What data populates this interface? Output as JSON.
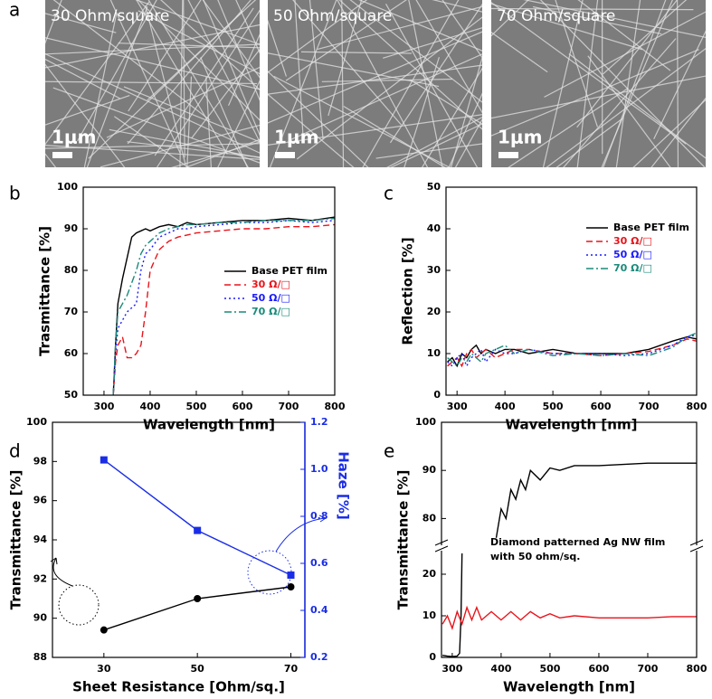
{
  "chart_data": [
    {
      "type": "micrograph",
      "panel": "a",
      "images": [
        {
          "label": "30 Ohm/square",
          "scale_bar": "1μm"
        },
        {
          "label": "50 Ohm/square",
          "scale_bar": "1μm"
        },
        {
          "label": "70 Ohm/square",
          "scale_bar": "1μm"
        }
      ]
    },
    {
      "type": "line",
      "panel": "b",
      "xlabel": "Wavelength [nm]",
      "ylabel": "Trasmittance [%]",
      "xlim": [
        255,
        800
      ],
      "xticks": [
        300,
        400,
        500,
        600,
        700,
        800
      ],
      "ylim": [
        50,
        100
      ],
      "yticks": [
        50,
        60,
        70,
        80,
        90,
        100
      ],
      "legend": "center-right",
      "x": [
        320,
        325,
        330,
        340,
        350,
        360,
        370,
        380,
        390,
        400,
        420,
        440,
        460,
        480,
        500,
        550,
        600,
        650,
        700,
        750,
        800
      ],
      "series": [
        {
          "name": "Base PET film",
          "color": "#000000",
          "linestyle": "solid",
          "values": [
            50,
            62,
            72,
            78,
            83,
            88,
            89,
            89.5,
            90,
            89.5,
            90.5,
            91,
            90.5,
            91.5,
            91,
            91.5,
            92,
            92,
            92.5,
            92,
            92.8
          ]
        },
        {
          "name": "30  Ω/□",
          "color": "#e8141b",
          "linestyle": "dashed",
          "values": [
            50,
            58,
            62,
            64,
            59,
            59,
            60,
            62,
            70,
            80,
            85,
            87,
            88,
            88.5,
            89,
            89.5,
            90,
            90,
            90.5,
            90.5,
            91
          ]
        },
        {
          "name": "50  Ω/□",
          "color": "#1a1aff",
          "linestyle": "dotted",
          "values": [
            50,
            60,
            66,
            68,
            70,
            71,
            72,
            80,
            84,
            85,
            88,
            89,
            90,
            90,
            90.5,
            91,
            91.5,
            91.5,
            92,
            91.5,
            92
          ]
        },
        {
          "name": "70  Ω/□",
          "color": "#1a8a7a",
          "linestyle": "dashdot",
          "values": [
            50,
            62,
            70,
            72,
            74,
            77,
            80,
            84,
            86,
            87,
            89,
            90,
            90.5,
            91,
            91,
            91.5,
            91.5,
            92,
            92,
            92,
            92.5
          ]
        }
      ]
    },
    {
      "type": "line",
      "panel": "c",
      "xlabel": "Wavelength [nm]",
      "ylabel": "Reflection [%]",
      "xlim": [
        277,
        800
      ],
      "xticks": [
        300,
        400,
        500,
        600,
        700,
        800
      ],
      "ylim": [
        0,
        50
      ],
      "yticks": [
        0,
        10,
        20,
        30,
        40,
        50
      ],
      "legend": "upper-right",
      "x": [
        280,
        290,
        300,
        310,
        320,
        330,
        340,
        350,
        360,
        380,
        400,
        420,
        450,
        500,
        550,
        600,
        650,
        700,
        750,
        780,
        800
      ],
      "series": [
        {
          "name": "Base PET film",
          "color": "#000000",
          "linestyle": "solid",
          "values": [
            8,
            9,
            7,
            10,
            9,
            11,
            12,
            10,
            11,
            10,
            11,
            11,
            10,
            11,
            10,
            10,
            10,
            11,
            13,
            14,
            13.5
          ]
        },
        {
          "name": "30  Ω/□",
          "color": "#e8141b",
          "linestyle": "dashed",
          "values": [
            7,
            8,
            9,
            7,
            10,
            11,
            9,
            10,
            11,
            9,
            10,
            11,
            11,
            10,
            10,
            9.5,
            10,
            10.5,
            12,
            13.5,
            13
          ]
        },
        {
          "name": "50  Ω/□",
          "color": "#1a1aff",
          "linestyle": "dotted",
          "values": [
            8,
            7,
            9,
            10,
            7,
            9,
            10,
            11,
            8,
            11,
            10,
            10,
            11,
            10,
            10,
            10,
            9.5,
            10,
            12,
            14,
            14.5
          ]
        },
        {
          "name": "70  Ω/□",
          "color": "#1a8a7a",
          "linestyle": "dashdot",
          "values": [
            9,
            8,
            7,
            9,
            8,
            10,
            9,
            8,
            10,
            11,
            12,
            10,
            11,
            9.5,
            10,
            9.5,
            10,
            9.5,
            11.5,
            14,
            15
          ]
        }
      ]
    },
    {
      "type": "dual-axis",
      "panel": "d",
      "xlabel": "Sheet Resistance [Ohm/sq.]",
      "ylabel": "Transmittance [%]",
      "y2label": "Haze [%]",
      "xlim": [
        19,
        73
      ],
      "xticks": [
        30,
        50,
        70
      ],
      "ylim": [
        88,
        100
      ],
      "yticks": [
        88,
        90,
        92,
        94,
        96,
        98,
        100
      ],
      "y2lim": [
        0.2,
        1.2
      ],
      "y2ticks": [
        0.2,
        0.4,
        0.6,
        0.8,
        {
          "value": 1,
          "label": "1.0"
        },
        1.2
      ],
      "y2color": "#1a2de6",
      "x": [
        30,
        50,
        70
      ],
      "series": [
        {
          "color": "#000000",
          "marker": "circle",
          "linestyle": "solid",
          "values": [
            89.4,
            91.0,
            91.6
          ]
        },
        {
          "color": "#1a2de6",
          "marker": "square",
          "linestyle": "solid",
          "axis": "y2",
          "values": [
            1.04,
            0.74,
            0.55
          ]
        }
      ]
    },
    {
      "type": "broken-line",
      "panel": "e",
      "xlabel": "Wavelength [nm]",
      "ylabel": "Transmittance [%]",
      "annotation": [
        "Diamond patterned Ag NW film",
        "with 50 ohm/sq."
      ],
      "xlim": [
        278,
        800
      ],
      "xticks": [
        300,
        400,
        500,
        600,
        700,
        800
      ],
      "ylim_lower": [
        0,
        25
      ],
      "ylim_upper": [
        75,
        100
      ],
      "yticks": [
        0,
        10,
        20,
        80,
        90,
        100
      ],
      "series": [
        {
          "color": "#000000",
          "linestyle": "solid",
          "x": [
            280,
            290,
            300,
            310,
            315,
            318,
            320,
            355,
            390,
            400,
            410,
            420,
            430,
            440,
            450,
            460,
            480,
            500,
            520,
            550,
            600,
            700,
            800
          ],
          "values": [
            0.5,
            0.3,
            0.2,
            0.3,
            1,
            10,
            25,
            null,
            76,
            82,
            80,
            86,
            84,
            88,
            86,
            90,
            88,
            90.5,
            90,
            91,
            91,
            91.5,
            91.5
          ]
        },
        {
          "color": "#e8141b",
          "linestyle": "solid",
          "x": [
            280,
            290,
            300,
            310,
            320,
            330,
            340,
            350,
            360,
            380,
            400,
            420,
            440,
            460,
            480,
            500,
            520,
            550,
            600,
            650,
            700,
            750,
            800
          ],
          "values": [
            8,
            10,
            7,
            11,
            8,
            12,
            9,
            12,
            9,
            11,
            9,
            11,
            9,
            11,
            9.5,
            10.5,
            9.5,
            10,
            9.5,
            9.5,
            9.5,
            9.8,
            9.8
          ]
        }
      ]
    }
  ]
}
